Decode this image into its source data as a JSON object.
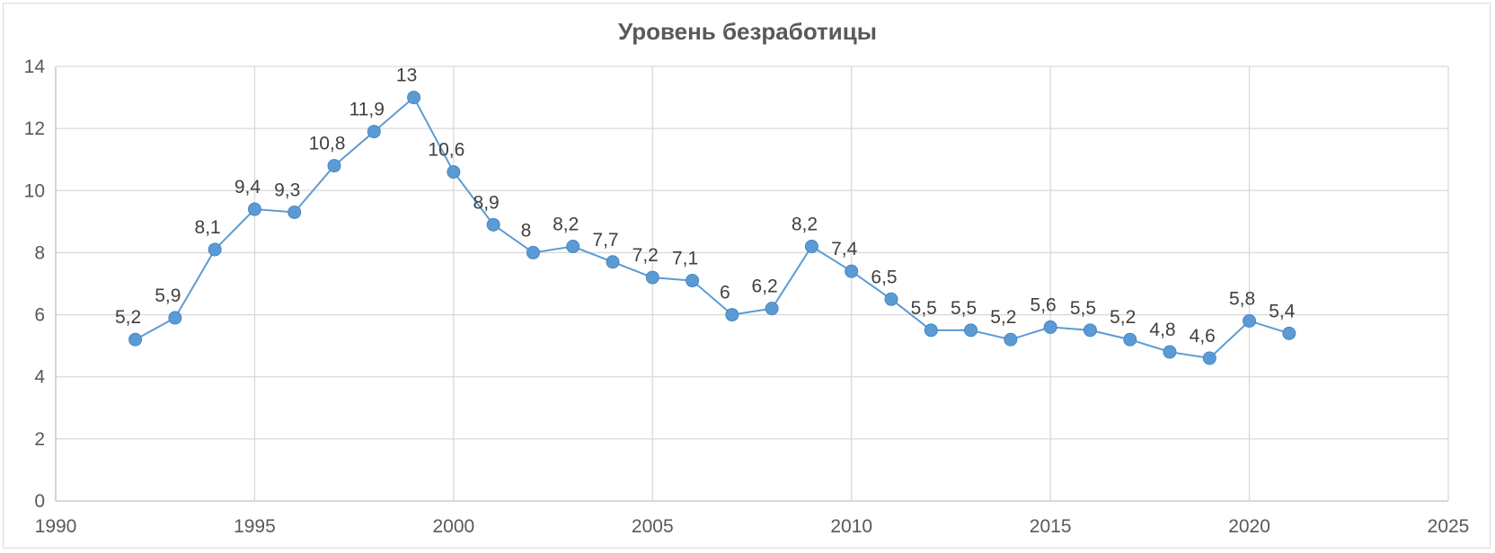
{
  "chart_data": {
    "type": "scatter",
    "title": "Уровень безработицы",
    "xlabel": "",
    "ylabel": "",
    "xlim": [
      1990,
      2025
    ],
    "ylim": [
      0,
      14
    ],
    "x_ticks": [
      1990,
      1995,
      2000,
      2005,
      2010,
      2015,
      2020,
      2025
    ],
    "y_ticks": [
      0,
      2,
      4,
      6,
      8,
      10,
      12,
      14
    ],
    "grid": "both",
    "legend": "none",
    "color": "#5b9bd5",
    "series": [
      {
        "name": "",
        "x": [
          1992,
          1993,
          1994,
          1995,
          1996,
          1997,
          1998,
          1999,
          2000,
          2001,
          2002,
          2003,
          2004,
          2005,
          2006,
          2007,
          2008,
          2009,
          2010,
          2011,
          2012,
          2013,
          2014,
          2015,
          2016,
          2017,
          2018,
          2019,
          2020,
          2021
        ],
        "y": [
          5.2,
          5.9,
          8.1,
          9.4,
          9.3,
          10.8,
          11.9,
          13,
          10.6,
          8.9,
          8,
          8.2,
          7.7,
          7.2,
          7.1,
          6,
          6.2,
          8.2,
          7.4,
          6.5,
          5.5,
          5.5,
          5.2,
          5.6,
          5.5,
          5.2,
          4.8,
          4.6,
          5.8,
          5.4
        ],
        "labels": [
          "5,2",
          "5,9",
          "8,1",
          "9,4",
          "9,3",
          "10,8",
          "11,9",
          "13",
          "10,6",
          "8,9",
          "8",
          "8,2",
          "7,7",
          "7,2",
          "7,1",
          "6",
          "6,2",
          "8,2",
          "7,4",
          "6,5",
          "5,5",
          "5,5",
          "5,2",
          "5,6",
          "5,5",
          "5,2",
          "4,8",
          "4,6",
          "5,8",
          "5,4"
        ]
      }
    ]
  }
}
